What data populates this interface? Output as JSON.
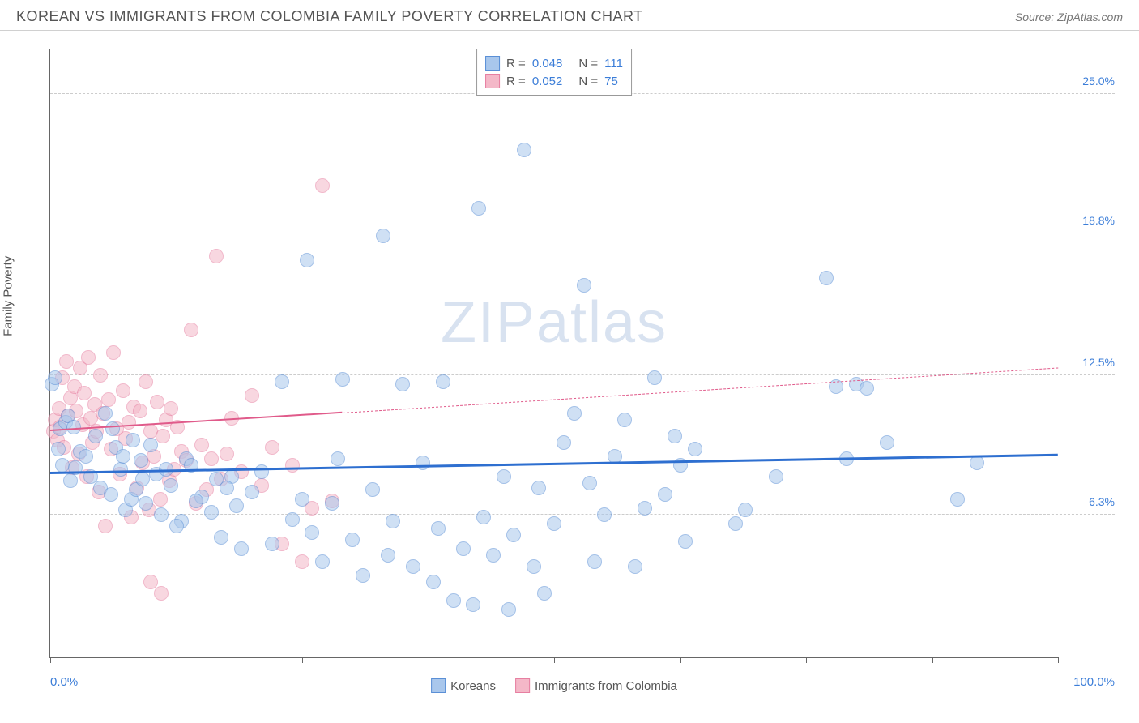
{
  "header": {
    "title": "KOREAN VS IMMIGRANTS FROM COLOMBIA FAMILY POVERTY CORRELATION CHART",
    "source": "Source: ZipAtlas.com"
  },
  "chart": {
    "type": "scatter",
    "ylabel": "Family Poverty",
    "watermark": "ZIPatlas",
    "background_color": "#ffffff",
    "grid_color": "#cccccc",
    "axis_color": "#666666",
    "xlim": [
      0,
      100
    ],
    "ylim": [
      0,
      27
    ],
    "xtick_positions": [
      0,
      12.5,
      25,
      37.5,
      50,
      62.5,
      75,
      87.5,
      100
    ],
    "xlim_labels": {
      "min": "0.0%",
      "max": "100.0%"
    },
    "ytick_positions": [
      6.3,
      12.5,
      18.8,
      25.0
    ],
    "ytick_labels": [
      "6.3%",
      "12.5%",
      "18.8%",
      "25.0%"
    ],
    "marker_radius": 9,
    "marker_opacity": 0.55,
    "series": {
      "koreans": {
        "label": "Koreans",
        "fill": "#a9c7ec",
        "stroke": "#5a8fd6",
        "trend_color": "#2e6fd0",
        "trend_width": 3,
        "trend": {
          "x0": 0,
          "y0": 8.1,
          "x1": 100,
          "y1": 8.9
        },
        "R": "0.048",
        "N": "111",
        "points": [
          [
            0.2,
            12.1
          ],
          [
            0.5,
            12.4
          ],
          [
            0.8,
            9.2
          ],
          [
            1.0,
            10.1
          ],
          [
            1.2,
            8.5
          ],
          [
            1.5,
            10.4
          ],
          [
            1.8,
            10.7
          ],
          [
            2.0,
            7.8
          ],
          [
            2.3,
            10.2
          ],
          [
            2.5,
            8.4
          ],
          [
            3.0,
            9.1
          ],
          [
            4.0,
            8.0
          ],
          [
            5.0,
            7.5
          ],
          [
            5.5,
            10.8
          ],
          [
            6.0,
            7.2
          ],
          [
            6.5,
            9.3
          ],
          [
            7.0,
            8.3
          ],
          [
            7.5,
            6.5
          ],
          [
            8.0,
            7.0
          ],
          [
            8.5,
            7.4
          ],
          [
            9.0,
            8.7
          ],
          [
            9.5,
            6.8
          ],
          [
            10.0,
            9.4
          ],
          [
            10.5,
            8.1
          ],
          [
            11.0,
            6.3
          ],
          [
            12.0,
            7.6
          ],
          [
            13.0,
            6.0
          ],
          [
            13.5,
            8.8
          ],
          [
            14.0,
            8.5
          ],
          [
            15.0,
            7.1
          ],
          [
            16.0,
            6.4
          ],
          [
            16.5,
            7.9
          ],
          [
            17.0,
            5.3
          ],
          [
            18.0,
            8.0
          ],
          [
            18.5,
            6.7
          ],
          [
            19.0,
            4.8
          ],
          [
            20.0,
            7.3
          ],
          [
            21.0,
            8.2
          ],
          [
            22.0,
            5.0
          ],
          [
            23.0,
            12.2
          ],
          [
            24.0,
            6.1
          ],
          [
            25.0,
            7.0
          ],
          [
            25.5,
            17.6
          ],
          [
            26.0,
            5.5
          ],
          [
            27.0,
            4.2
          ],
          [
            28.0,
            6.8
          ],
          [
            28.5,
            8.8
          ],
          [
            29.0,
            12.3
          ],
          [
            30.0,
            5.2
          ],
          [
            31.0,
            3.6
          ],
          [
            32.0,
            7.4
          ],
          [
            33.0,
            18.7
          ],
          [
            33.5,
            4.5
          ],
          [
            34.0,
            6.0
          ],
          [
            35.0,
            12.1
          ],
          [
            36.0,
            4.0
          ],
          [
            37.0,
            8.6
          ],
          [
            38.0,
            3.3
          ],
          [
            38.5,
            5.7
          ],
          [
            39.0,
            12.2
          ],
          [
            40.0,
            2.5
          ],
          [
            41.0,
            4.8
          ],
          [
            42.0,
            2.3
          ],
          [
            42.5,
            19.9
          ],
          [
            43.0,
            6.2
          ],
          [
            44.0,
            4.5
          ],
          [
            45.0,
            8.0
          ],
          [
            45.5,
            2.1
          ],
          [
            46.0,
            5.4
          ],
          [
            47.0,
            22.5
          ],
          [
            48.0,
            4.0
          ],
          [
            48.5,
            7.5
          ],
          [
            49.0,
            2.8
          ],
          [
            50.0,
            5.9
          ],
          [
            51.0,
            9.5
          ],
          [
            52.0,
            10.8
          ],
          [
            53.0,
            16.5
          ],
          [
            53.5,
            7.7
          ],
          [
            54.0,
            4.2
          ],
          [
            55.0,
            6.3
          ],
          [
            56.0,
            8.9
          ],
          [
            57.0,
            10.5
          ],
          [
            58.0,
            4.0
          ],
          [
            59.0,
            6.6
          ],
          [
            60.0,
            12.4
          ],
          [
            61.0,
            7.2
          ],
          [
            62.0,
            9.8
          ],
          [
            62.5,
            8.5
          ],
          [
            63.0,
            5.1
          ],
          [
            64.0,
            9.2
          ],
          [
            68.0,
            5.9
          ],
          [
            69.0,
            6.5
          ],
          [
            72.0,
            8.0
          ],
          [
            77.0,
            16.8
          ],
          [
            78.0,
            12.0
          ],
          [
            79.0,
            8.8
          ],
          [
            80.0,
            12.1
          ],
          [
            81.0,
            11.9
          ],
          [
            83.0,
            9.5
          ],
          [
            90.0,
            7.0
          ],
          [
            92.0,
            8.6
          ],
          [
            3.5,
            8.9
          ],
          [
            4.5,
            9.8
          ],
          [
            6.2,
            10.1
          ],
          [
            7.2,
            8.9
          ],
          [
            8.2,
            9.6
          ],
          [
            9.2,
            7.9
          ],
          [
            11.5,
            8.3
          ],
          [
            12.5,
            5.8
          ],
          [
            14.5,
            6.9
          ],
          [
            17.5,
            7.5
          ]
        ]
      },
      "colombia": {
        "label": "Immigrants from Colombia",
        "fill": "#f4b8c8",
        "stroke": "#e77fa1",
        "trend_color": "#e05a8a",
        "trend_width": 2.5,
        "trend_solid": {
          "x0": 0,
          "y0": 10.0,
          "x1": 29,
          "y1": 10.8
        },
        "trend_dashed": {
          "x0": 29,
          "y0": 10.8,
          "x1": 100,
          "y1": 12.8
        },
        "R": "0.052",
        "N": "75",
        "points": [
          [
            0.3,
            10.0
          ],
          [
            0.5,
            10.5
          ],
          [
            0.7,
            9.6
          ],
          [
            0.9,
            11.0
          ],
          [
            1.0,
            10.2
          ],
          [
            1.2,
            12.4
          ],
          [
            1.4,
            9.3
          ],
          [
            1.6,
            13.1
          ],
          [
            1.8,
            10.7
          ],
          [
            2.0,
            11.5
          ],
          [
            2.2,
            8.4
          ],
          [
            2.4,
            12.0
          ],
          [
            2.6,
            10.9
          ],
          [
            2.8,
            9.0
          ],
          [
            3.0,
            12.8
          ],
          [
            3.2,
            10.3
          ],
          [
            3.4,
            11.7
          ],
          [
            3.6,
            8.0
          ],
          [
            3.8,
            13.3
          ],
          [
            4.0,
            10.6
          ],
          [
            4.2,
            9.5
          ],
          [
            4.4,
            11.2
          ],
          [
            4.6,
            10.0
          ],
          [
            4.8,
            7.3
          ],
          [
            5.0,
            12.5
          ],
          [
            5.2,
            10.8
          ],
          [
            5.5,
            5.8
          ],
          [
            5.8,
            11.4
          ],
          [
            6.0,
            9.2
          ],
          [
            6.3,
            13.5
          ],
          [
            6.6,
            10.1
          ],
          [
            6.9,
            8.1
          ],
          [
            7.2,
            11.8
          ],
          [
            7.5,
            9.7
          ],
          [
            7.8,
            10.4
          ],
          [
            8.0,
            6.2
          ],
          [
            8.3,
            11.1
          ],
          [
            8.6,
            7.5
          ],
          [
            8.9,
            10.9
          ],
          [
            9.2,
            8.6
          ],
          [
            9.5,
            12.2
          ],
          [
            9.8,
            6.5
          ],
          [
            10.0,
            10.0
          ],
          [
            10.3,
            8.9
          ],
          [
            10.6,
            11.3
          ],
          [
            10.9,
            7.0
          ],
          [
            11.2,
            9.8
          ],
          [
            11.5,
            10.5
          ],
          [
            11.8,
            7.8
          ],
          [
            12.0,
            11.0
          ],
          [
            12.3,
            8.3
          ],
          [
            12.6,
            10.2
          ],
          [
            13.0,
            9.1
          ],
          [
            13.5,
            8.7
          ],
          [
            14.0,
            14.5
          ],
          [
            14.5,
            6.8
          ],
          [
            15.0,
            9.4
          ],
          [
            15.5,
            7.4
          ],
          [
            16.0,
            8.8
          ],
          [
            16.5,
            17.8
          ],
          [
            17.0,
            7.9
          ],
          [
            17.5,
            9.0
          ],
          [
            18.0,
            10.6
          ],
          [
            19.0,
            8.2
          ],
          [
            20.0,
            11.6
          ],
          [
            21.0,
            7.6
          ],
          [
            22.0,
            9.3
          ],
          [
            23.0,
            5.0
          ],
          [
            24.0,
            8.5
          ],
          [
            25.0,
            4.2
          ],
          [
            26.0,
            6.6
          ],
          [
            27.0,
            20.9
          ],
          [
            28.0,
            6.9
          ],
          [
            10.0,
            3.3
          ],
          [
            11.0,
            2.8
          ]
        ]
      }
    }
  }
}
